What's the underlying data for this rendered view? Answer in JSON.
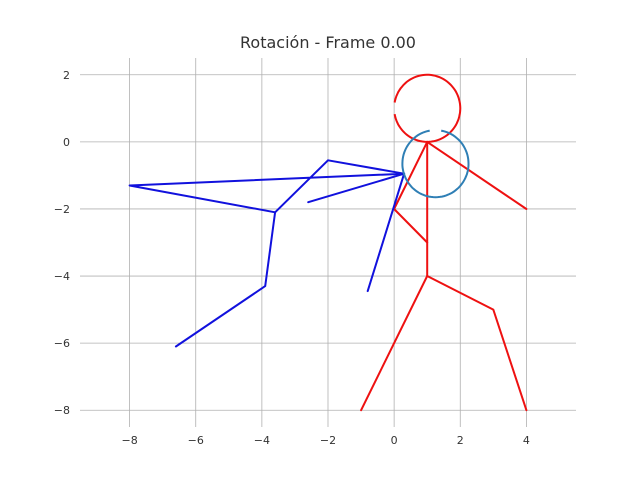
{
  "chart_data": {
    "type": "line",
    "title": "Rotación - Frame 0.00",
    "xlabel": "",
    "ylabel": "",
    "xlim": [
      -9.5,
      5.5
    ],
    "ylim": [
      -8.5,
      2.5
    ],
    "grid": true,
    "x_ticks": [
      -8,
      -6,
      -4,
      -2,
      0,
      2,
      4
    ],
    "x_tick_labels": [
      "−8",
      "−6",
      "−4",
      "−2",
      "0",
      "2",
      "4"
    ],
    "y_ticks": [
      2,
      0,
      -2,
      -4,
      -6,
      -8
    ],
    "y_tick_labels": [
      "2",
      "0",
      "−2",
      "−4",
      "−6",
      "−8"
    ],
    "colors": {
      "red": "#ee1111",
      "blue": "#1111dd",
      "steel": "#2f7fb5",
      "grid": "#b0b0b0"
    },
    "series": [
      {
        "color": "#ee1111",
        "points": [
          [
            1,
            0
          ],
          [
            1,
            -4
          ]
        ]
      },
      {
        "color": "#ee1111",
        "points": [
          [
            1,
            0
          ],
          [
            4,
            -2
          ]
        ]
      },
      {
        "color": "#ee1111",
        "points": [
          [
            1,
            0
          ],
          [
            0,
            -2
          ],
          [
            1,
            -3
          ]
        ]
      },
      {
        "color": "#ee1111",
        "points": [
          [
            1,
            -4
          ],
          [
            3,
            -5
          ],
          [
            4,
            -8
          ]
        ]
      },
      {
        "color": "#ee1111",
        "points": [
          [
            1,
            -4
          ],
          [
            -1,
            -8
          ]
        ]
      },
      {
        "color": "#1111dd",
        "points": [
          [
            0.3,
            -0.95
          ],
          [
            -8,
            -1.3
          ],
          [
            -3.6,
            -2.1
          ],
          [
            -2,
            -0.55
          ],
          [
            0.3,
            -0.95
          ]
        ]
      },
      {
        "color": "#1111dd",
        "points": [
          [
            0.3,
            -0.95
          ],
          [
            -2.6,
            -1.8
          ]
        ]
      },
      {
        "color": "#1111dd",
        "points": [
          [
            -3.6,
            -2.1
          ],
          [
            -3.9,
            -4.3
          ],
          [
            -6.6,
            -6.1
          ]
        ]
      },
      {
        "color": "#1111dd",
        "points": [
          [
            0.3,
            -0.95
          ],
          [
            -0.8,
            -4.45
          ]
        ]
      }
    ],
    "circles": [
      {
        "color": "#ee1111",
        "center": [
          1,
          1
        ],
        "radius": 1,
        "theta_start": 190,
        "theta_end": 530
      },
      {
        "color": "#2f7fb5",
        "center": [
          1.25,
          -0.65
        ],
        "radius": 1,
        "theta_start": 100,
        "theta_end": 440
      }
    ]
  }
}
